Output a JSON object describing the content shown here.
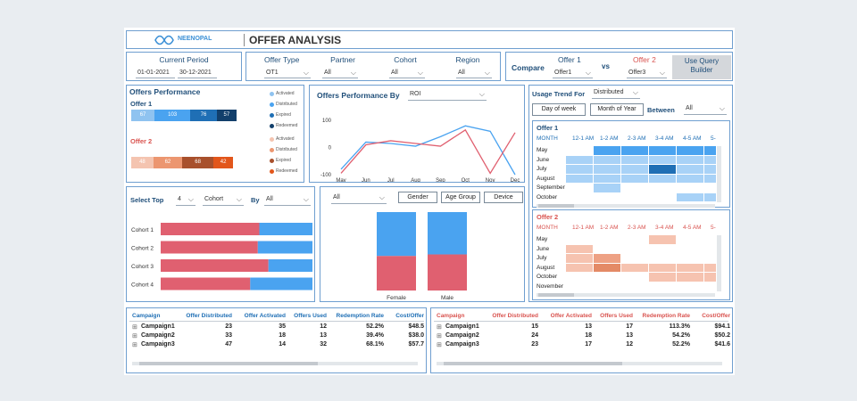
{
  "header": {
    "logo_text": "NEENOPAL",
    "title": "OFFER ANALYSIS"
  },
  "period": {
    "label": "Current Period",
    "start": "01-01-2021",
    "end": "30-12-2021"
  },
  "filters": {
    "offer_type": {
      "label": "Offer Type",
      "value": "OT1"
    },
    "partner": {
      "label": "Partner",
      "value": "All"
    },
    "cohort": {
      "label": "Cohort",
      "value": "All"
    },
    "region": {
      "label": "Region",
      "value": "All"
    }
  },
  "compare": {
    "label": "Compare",
    "vs": "vs",
    "offer1_label": "Offer 1",
    "offer1_value": "Offer1",
    "offer2_label": "Offer 2",
    "offer2_value": "Offer3",
    "query_button": "Use Query Builder"
  },
  "offers_performance": {
    "title": "Offers Performance",
    "offer1_label": "Offer 1",
    "offer2_label": "Offer 2",
    "offer1_values": [
      67,
      103,
      76,
      57
    ],
    "offer2_values": [
      48,
      62,
      68,
      42
    ],
    "legend1": [
      "Activated",
      "Distributed",
      "Expired",
      "Redeemed"
    ],
    "legend2": [
      "Activated",
      "Distributed",
      "Expired",
      "Redeemed"
    ],
    "colors1": [
      "#8fc3f0",
      "#4aa3f0",
      "#1f6fb5",
      "#123f6b"
    ],
    "colors2": [
      "#f4c4b0",
      "#ec9670",
      "#a8502c",
      "#e2561b"
    ]
  },
  "perf_by": {
    "title": "Offers Performance By",
    "metric": "ROI",
    "chart_data": {
      "type": "line",
      "x": [
        "May",
        "Jun",
        "Jul",
        "Aug",
        "Sep",
        "Oct",
        "Nov",
        "Dec"
      ],
      "ylim": [
        -100,
        130
      ],
      "yticks": [
        100,
        0,
        -100
      ],
      "series": [
        {
          "color": "#4aa3f0",
          "values": [
            -80,
            20,
            15,
            5,
            40,
            80,
            60,
            -100
          ]
        },
        {
          "color": "#e06070",
          "values": [
            -95,
            10,
            25,
            15,
            5,
            65,
            -95,
            55
          ]
        }
      ]
    }
  },
  "usage_trend": {
    "label": "Usage Trend For",
    "value": "Distributed",
    "btn_day": "Day of week",
    "btn_month": "Month of Year",
    "between_label": "Between",
    "between_value": "All",
    "offer1_title": "Offer 1",
    "offer2_title": "Offer 2",
    "row_header": "MONTH",
    "columns": [
      "12-1 AM",
      "1-2 AM",
      "2-3 AM",
      "3-4 AM",
      "4-5 AM",
      "5-"
    ],
    "offer1_rows": [
      "May",
      "June",
      "July",
      "August",
      "September",
      "October"
    ],
    "offer2_rows": [
      "May",
      "June",
      "July",
      "August",
      "October",
      "November"
    ],
    "offer1_levels": [
      [
        0,
        2,
        2,
        2,
        2,
        2
      ],
      [
        1,
        1,
        1,
        1,
        1,
        1
      ],
      [
        1,
        1,
        1,
        3,
        1,
        1
      ],
      [
        1,
        1,
        1,
        1,
        1,
        1
      ],
      [
        0,
        1,
        0,
        0,
        0,
        0
      ],
      [
        0,
        0,
        0,
        0,
        1,
        1
      ]
    ],
    "offer2_levels": [
      [
        0,
        0,
        0,
        1,
        0,
        0
      ],
      [
        1,
        0,
        0,
        0,
        0,
        0
      ],
      [
        1,
        2,
        0,
        0,
        0,
        0
      ],
      [
        1,
        3,
        1,
        1,
        1,
        1
      ],
      [
        0,
        0,
        0,
        1,
        1,
        1
      ],
      [
        0,
        0,
        0,
        0,
        0,
        0
      ]
    ]
  },
  "select_top": {
    "label": "Select Top",
    "count": "4",
    "dim": "Cohort",
    "by_label": "By",
    "by_value": "All",
    "chart_data": {
      "type": "bar",
      "categories": [
        "Cohort 1",
        "Cohort 2",
        "Cohort 3",
        "Cohort 4"
      ],
      "series": [
        {
          "color": "#e06070",
          "values": [
            0.65,
            0.64,
            0.71,
            0.59
          ]
        },
        {
          "color": "#4aa3f0",
          "values": [
            0.35,
            0.36,
            0.29,
            0.41
          ]
        }
      ]
    }
  },
  "gender_panel": {
    "filter": "All",
    "btn_gender": "Gender",
    "btn_age": "Age Group",
    "btn_device": "Device",
    "chart_data": {
      "type": "bar",
      "categories": [
        "Female",
        "Male"
      ],
      "series": [
        {
          "color": "#4aa3f0",
          "values": [
            0.56,
            0.54
          ]
        },
        {
          "color": "#e06070",
          "values": [
            0.44,
            0.46
          ]
        }
      ]
    }
  },
  "table1": {
    "headers": [
      "Campaign",
      "Offer Distributed",
      "Offer Activated",
      "Offers Used",
      "Redemption Rate",
      "Cost/Offer"
    ],
    "rows": [
      [
        "Campaign1",
        "23",
        "35",
        "12",
        "52.2%",
        "$48.5"
      ],
      [
        "Campaign2",
        "33",
        "18",
        "13",
        "39.4%",
        "$38.0"
      ],
      [
        "Campaign3",
        "47",
        "14",
        "32",
        "68.1%",
        "$57.7"
      ]
    ]
  },
  "table2": {
    "headers": [
      "Campaign",
      "Offer Distributed",
      "Offer Activated",
      "Offers Used",
      "Redemption Rate",
      "Cost/Offer"
    ],
    "rows": [
      [
        "Campaign1",
        "15",
        "13",
        "17",
        "113.3%",
        "$94.1"
      ],
      [
        "Campaign2",
        "24",
        "18",
        "13",
        "54.2%",
        "$50.2"
      ],
      [
        "Campaign3",
        "23",
        "17",
        "12",
        "52.2%",
        "$41.6"
      ]
    ]
  }
}
